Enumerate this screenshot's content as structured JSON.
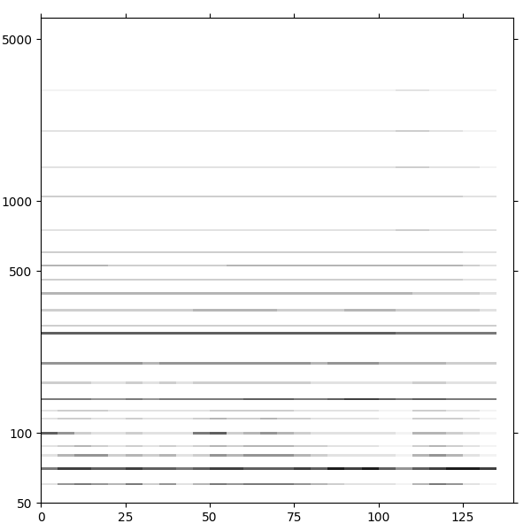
{
  "chart_data": {
    "type": "spectrogram",
    "log": "y",
    "color": "Greys",
    "xlim": [
      0,
      140
    ],
    "xticks": [
      0,
      25,
      50,
      75,
      100,
      125
    ],
    "ylim": [
      50,
      6200
    ],
    "yticks": [
      50,
      100,
      500,
      1000,
      5000
    ],
    "value_range": [
      0,
      1
    ],
    "x_edges": [
      0,
      5,
      10,
      15,
      20,
      25,
      30,
      35,
      40,
      45,
      50,
      55,
      60,
      65,
      70,
      75,
      80,
      85,
      90,
      95,
      100,
      105,
      110,
      115,
      120,
      125,
      130,
      135
    ],
    "lines": [
      {
        "frequency": 60,
        "values": [
          0.2,
          0.5,
          0.6,
          0.5,
          0.4,
          0.6,
          0.3,
          0.5,
          0.2,
          0.4,
          0.6,
          0.5,
          0.6,
          0.6,
          0.6,
          0.5,
          0.4,
          0.3,
          0.2,
          0.2,
          0.2,
          0.1,
          0.4,
          0.6,
          0.5,
          0.2,
          0.1
        ]
      },
      {
        "frequency": 70,
        "values": [
          0.6,
          0.8,
          0.8,
          0.7,
          0.7,
          0.8,
          0.7,
          0.7,
          0.6,
          0.7,
          0.8,
          0.8,
          0.7,
          0.7,
          0.7,
          0.8,
          0.7,
          0.9,
          0.8,
          0.9,
          0.7,
          0.5,
          0.7,
          0.8,
          0.9,
          0.9,
          0.8
        ]
      },
      {
        "frequency": 80,
        "values": [
          0.2,
          0.4,
          0.5,
          0.5,
          0.3,
          0.4,
          0.3,
          0.4,
          0.2,
          0.3,
          0.5,
          0.4,
          0.5,
          0.5,
          0.5,
          0.4,
          0.3,
          0.2,
          0.2,
          0.2,
          0.2,
          0.1,
          0.4,
          0.5,
          0.4,
          0.2,
          0.1
        ]
      },
      {
        "frequency": 88,
        "values": [
          0.2,
          0.3,
          0.4,
          0.3,
          0.2,
          0.3,
          0.2,
          0.3,
          0.2,
          0.3,
          0.4,
          0.3,
          0.4,
          0.4,
          0.4,
          0.3,
          0.3,
          0.2,
          0.2,
          0.2,
          0.1,
          0.1,
          0.3,
          0.4,
          0.3,
          0.2,
          0.1
        ]
      },
      {
        "frequency": 100,
        "values": [
          0.7,
          0.5,
          0.3,
          0.2,
          0.2,
          0.3,
          0.2,
          0.2,
          0.2,
          0.6,
          0.7,
          0.3,
          0.4,
          0.5,
          0.4,
          0.3,
          0.2,
          0.2,
          0.2,
          0.2,
          0.2,
          0.1,
          0.4,
          0.4,
          0.3,
          0.2,
          0.1
        ]
      },
      {
        "frequency": 115,
        "values": [
          0.2,
          0.3,
          0.3,
          0.2,
          0.2,
          0.3,
          0.2,
          0.2,
          0.2,
          0.3,
          0.4,
          0.3,
          0.3,
          0.4,
          0.3,
          0.3,
          0.2,
          0.2,
          0.2,
          0.2,
          0.1,
          0.1,
          0.3,
          0.3,
          0.3,
          0.2,
          0.1
        ]
      },
      {
        "frequency": 125,
        "values": [
          0.2,
          0.3,
          0.3,
          0.3,
          0.2,
          0.2,
          0.2,
          0.2,
          0.2,
          0.2,
          0.3,
          0.3,
          0.3,
          0.3,
          0.3,
          0.2,
          0.2,
          0.2,
          0.2,
          0.2,
          0.1,
          0.1,
          0.3,
          0.3,
          0.2,
          0.2,
          0.1
        ]
      },
      {
        "frequency": 140,
        "values": [
          0.6,
          0.6,
          0.6,
          0.5,
          0.5,
          0.6,
          0.5,
          0.6,
          0.6,
          0.6,
          0.6,
          0.6,
          0.7,
          0.7,
          0.7,
          0.6,
          0.6,
          0.7,
          0.8,
          0.8,
          0.7,
          0.6,
          0.7,
          0.7,
          0.6,
          0.6,
          0.6
        ]
      },
      {
        "frequency": 165,
        "values": [
          0.3,
          0.3,
          0.3,
          0.2,
          0.2,
          0.3,
          0.2,
          0.3,
          0.2,
          0.3,
          0.3,
          0.3,
          0.3,
          0.3,
          0.3,
          0.3,
          0.2,
          0.2,
          0.2,
          0.2,
          0.2,
          0.2,
          0.3,
          0.3,
          0.2,
          0.2,
          0.2
        ]
      },
      {
        "frequency": 200,
        "values": [
          0.5,
          0.5,
          0.5,
          0.5,
          0.5,
          0.5,
          0.4,
          0.5,
          0.5,
          0.5,
          0.5,
          0.5,
          0.5,
          0.5,
          0.5,
          0.5,
          0.4,
          0.5,
          0.5,
          0.5,
          0.4,
          0.4,
          0.4,
          0.4,
          0.3,
          0.3,
          0.3
        ]
      },
      {
        "frequency": 270,
        "values": [
          0.7,
          0.7,
          0.7,
          0.7,
          0.7,
          0.7,
          0.7,
          0.7,
          0.7,
          0.7,
          0.7,
          0.7,
          0.7,
          0.7,
          0.7,
          0.7,
          0.7,
          0.7,
          0.7,
          0.7,
          0.7,
          0.6,
          0.6,
          0.6,
          0.6,
          0.6,
          0.6
        ]
      },
      {
        "frequency": 290,
        "values": [
          0.3,
          0.3,
          0.3,
          0.3,
          0.3,
          0.3,
          0.3,
          0.3,
          0.3,
          0.3,
          0.3,
          0.3,
          0.3,
          0.3,
          0.3,
          0.3,
          0.3,
          0.3,
          0.3,
          0.3,
          0.3,
          0.3,
          0.3,
          0.3,
          0.3,
          0.3,
          0.3
        ]
      },
      {
        "frequency": 340,
        "values": [
          0.3,
          0.3,
          0.3,
          0.3,
          0.3,
          0.3,
          0.3,
          0.3,
          0.3,
          0.4,
          0.4,
          0.4,
          0.4,
          0.4,
          0.3,
          0.3,
          0.3,
          0.3,
          0.4,
          0.4,
          0.4,
          0.3,
          0.3,
          0.3,
          0.3,
          0.3,
          0.2
        ]
      },
      {
        "frequency": 400,
        "values": [
          0.4,
          0.4,
          0.4,
          0.4,
          0.4,
          0.4,
          0.4,
          0.4,
          0.4,
          0.4,
          0.4,
          0.4,
          0.4,
          0.4,
          0.4,
          0.4,
          0.4,
          0.4,
          0.4,
          0.4,
          0.4,
          0.4,
          0.3,
          0.3,
          0.3,
          0.3,
          0.2
        ]
      },
      {
        "frequency": 460,
        "values": [
          0.3,
          0.3,
          0.3,
          0.3,
          0.3,
          0.3,
          0.3,
          0.3,
          0.3,
          0.3,
          0.3,
          0.3,
          0.3,
          0.3,
          0.3,
          0.3,
          0.3,
          0.3,
          0.3,
          0.3,
          0.3,
          0.3,
          0.3,
          0.3,
          0.3,
          0.2,
          0.2
        ]
      },
      {
        "frequency": 530,
        "values": [
          0.4,
          0.4,
          0.4,
          0.4,
          0.3,
          0.3,
          0.3,
          0.3,
          0.3,
          0.3,
          0.3,
          0.4,
          0.4,
          0.4,
          0.4,
          0.4,
          0.4,
          0.4,
          0.4,
          0.4,
          0.4,
          0.4,
          0.4,
          0.4,
          0.4,
          0.3,
          0.2
        ]
      },
      {
        "frequency": 600,
        "values": [
          0.3,
          0.3,
          0.3,
          0.3,
          0.3,
          0.3,
          0.3,
          0.3,
          0.3,
          0.3,
          0.3,
          0.3,
          0.3,
          0.3,
          0.3,
          0.3,
          0.3,
          0.3,
          0.3,
          0.3,
          0.3,
          0.3,
          0.3,
          0.3,
          0.3,
          0.2,
          0.2
        ]
      },
      {
        "frequency": 750,
        "values": [
          0.2,
          0.2,
          0.2,
          0.2,
          0.2,
          0.2,
          0.2,
          0.2,
          0.2,
          0.2,
          0.2,
          0.2,
          0.2,
          0.2,
          0.2,
          0.2,
          0.2,
          0.2,
          0.2,
          0.2,
          0.2,
          0.3,
          0.3,
          0.2,
          0.2,
          0.2,
          0.2
        ]
      },
      {
        "frequency": 1050,
        "values": [
          0.3,
          0.3,
          0.3,
          0.3,
          0.3,
          0.3,
          0.3,
          0.3,
          0.3,
          0.3,
          0.3,
          0.3,
          0.3,
          0.3,
          0.3,
          0.3,
          0.3,
          0.3,
          0.3,
          0.3,
          0.3,
          0.3,
          0.3,
          0.3,
          0.3,
          0.2,
          0.2
        ]
      },
      {
        "frequency": 1400,
        "values": [
          0.2,
          0.2,
          0.2,
          0.2,
          0.2,
          0.2,
          0.2,
          0.2,
          0.2,
          0.2,
          0.2,
          0.2,
          0.2,
          0.2,
          0.2,
          0.2,
          0.2,
          0.2,
          0.2,
          0.2,
          0.2,
          0.3,
          0.3,
          0.2,
          0.2,
          0.2,
          0.1
        ]
      },
      {
        "frequency": 2000,
        "values": [
          0.2,
          0.2,
          0.2,
          0.2,
          0.2,
          0.2,
          0.2,
          0.2,
          0.2,
          0.2,
          0.2,
          0.2,
          0.2,
          0.2,
          0.2,
          0.2,
          0.2,
          0.2,
          0.2,
          0.2,
          0.2,
          0.3,
          0.3,
          0.2,
          0.2,
          0.1,
          0.1
        ]
      },
      {
        "frequency": 3000,
        "values": [
          0.1,
          0.1,
          0.1,
          0.1,
          0.1,
          0.1,
          0.1,
          0.1,
          0.1,
          0.1,
          0.1,
          0.1,
          0.1,
          0.1,
          0.1,
          0.1,
          0.1,
          0.1,
          0.1,
          0.1,
          0.1,
          0.2,
          0.2,
          0.1,
          0.1,
          0.1,
          0.1
        ]
      }
    ]
  }
}
